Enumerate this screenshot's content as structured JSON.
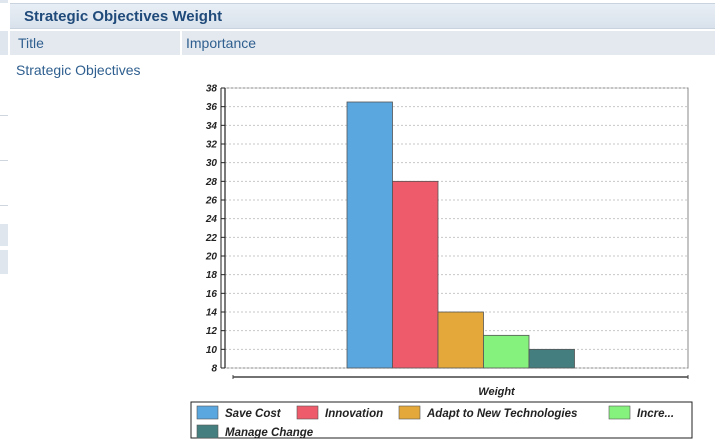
{
  "panel": {
    "title": "Strategic Objectives Weight"
  },
  "columns": {
    "title": "Title",
    "importance": "Importance"
  },
  "row": {
    "title": "Strategic Objectives"
  },
  "chart_data": {
    "type": "bar",
    "categories": [
      "Weight"
    ],
    "xlabel": "Weight",
    "ylabel": "",
    "ylim": [
      8,
      38
    ],
    "yticks": [
      8,
      10,
      12,
      14,
      16,
      18,
      20,
      22,
      24,
      26,
      28,
      30,
      32,
      34,
      36,
      38
    ],
    "grid": true,
    "legend_position": "bottom",
    "series": [
      {
        "name": "Save Cost",
        "values": [
          36.5
        ],
        "color": "#5aa6de"
      },
      {
        "name": "Innovation",
        "values": [
          28
        ],
        "color": "#ee5b6b"
      },
      {
        "name": "Adapt to New Technologies",
        "values": [
          14
        ],
        "color": "#e4a83a"
      },
      {
        "name": "Incre...",
        "values": [
          11.5
        ],
        "color": "#86f27e"
      },
      {
        "name": "Manage Change",
        "values": [
          10
        ],
        "color": "#447e7e"
      }
    ]
  }
}
